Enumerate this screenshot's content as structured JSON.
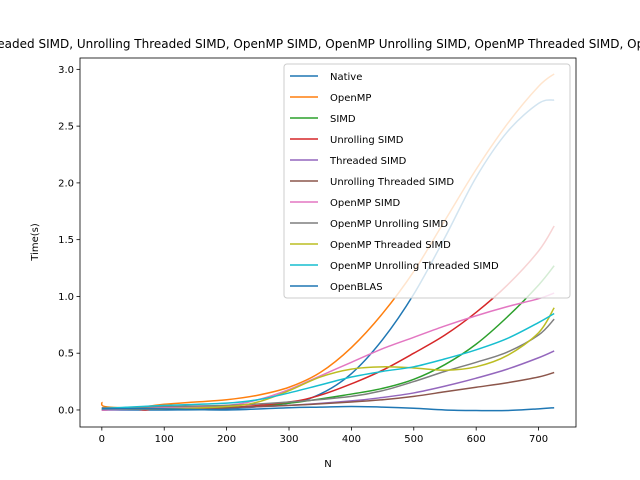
{
  "chart_data": {
    "type": "line",
    "title": "Native, OpenMP, SIMD, Unrolling SIMD, Threaded SIMD, Unrolling Threaded SIMD, OpenMP SIMD, OpenMP Unrolling SIMD, OpenMP Threaded SIMD, OpenMP Unrolling Threaded SIMD, OpenBLAS",
    "xlabel": "N",
    "ylabel": "Time(s)",
    "xlim": [
      -35,
      760
    ],
    "ylim": [
      -0.15,
      3.1
    ],
    "xticks": [
      0,
      100,
      200,
      300,
      400,
      500,
      600,
      700
    ],
    "yticks": [
      0.0,
      0.5,
      1.0,
      1.5,
      2.0,
      2.5,
      3.0
    ],
    "xtick_labels": [
      "0",
      "100",
      "200",
      "300",
      "400",
      "500",
      "600",
      "700"
    ],
    "ytick_labels": [
      "0.0",
      "0.5",
      "1.0",
      "1.5",
      "2.0",
      "2.5",
      "3.0"
    ],
    "legend_position": "top-right",
    "series": [
      {
        "name": "Native",
        "color": "#1f77b4",
        "points": [
          [
            0,
            0.0
          ],
          [
            100,
            0.0
          ],
          [
            200,
            0.01
          ],
          [
            300,
            0.06
          ],
          [
            350,
            0.14
          ],
          [
            400,
            0.32
          ],
          [
            450,
            0.62
          ],
          [
            500,
            1.02
          ],
          [
            550,
            1.52
          ],
          [
            600,
            2.05
          ],
          [
            650,
            2.45
          ],
          [
            700,
            2.7
          ],
          [
            725,
            2.73
          ]
        ]
      },
      {
        "name": "OpenMP",
        "color": "#ff7f0e",
        "points": [
          [
            0,
            0.07
          ],
          [
            5,
            0.03
          ],
          [
            50,
            0.02
          ],
          [
            100,
            0.05
          ],
          [
            150,
            0.07
          ],
          [
            200,
            0.09
          ],
          [
            250,
            0.13
          ],
          [
            300,
            0.2
          ],
          [
            350,
            0.33
          ],
          [
            400,
            0.55
          ],
          [
            450,
            0.85
          ],
          [
            500,
            1.22
          ],
          [
            550,
            1.67
          ],
          [
            600,
            2.12
          ],
          [
            650,
            2.52
          ],
          [
            700,
            2.85
          ],
          [
            725,
            2.96
          ]
        ]
      },
      {
        "name": "SIMD",
        "color": "#2ca02c",
        "points": [
          [
            0,
            0.02
          ],
          [
            30,
            0.02
          ],
          [
            100,
            0.01
          ],
          [
            200,
            0.02
          ],
          [
            300,
            0.06
          ],
          [
            400,
            0.14
          ],
          [
            450,
            0.19
          ],
          [
            500,
            0.27
          ],
          [
            550,
            0.4
          ],
          [
            600,
            0.58
          ],
          [
            650,
            0.82
          ],
          [
            700,
            1.1
          ],
          [
            725,
            1.27
          ]
        ]
      },
      {
        "name": "Unrolling SIMD",
        "color": "#d62728",
        "points": [
          [
            0,
            0.0
          ],
          [
            50,
            0.01
          ],
          [
            70,
            0.0
          ],
          [
            100,
            0.02
          ],
          [
            200,
            0.02
          ],
          [
            300,
            0.07
          ],
          [
            350,
            0.13
          ],
          [
            400,
            0.23
          ],
          [
            450,
            0.35
          ],
          [
            500,
            0.5
          ],
          [
            550,
            0.66
          ],
          [
            600,
            0.86
          ],
          [
            650,
            1.1
          ],
          [
            700,
            1.4
          ],
          [
            725,
            1.62
          ]
        ]
      },
      {
        "name": "Threaded SIMD",
        "color": "#9467bd",
        "points": [
          [
            0,
            0.0
          ],
          [
            100,
            0.01
          ],
          [
            200,
            0.02
          ],
          [
            300,
            0.04
          ],
          [
            400,
            0.08
          ],
          [
            450,
            0.11
          ],
          [
            500,
            0.15
          ],
          [
            550,
            0.21
          ],
          [
            600,
            0.28
          ],
          [
            650,
            0.36
          ],
          [
            700,
            0.46
          ],
          [
            725,
            0.52
          ]
        ]
      },
      {
        "name": "Unrolling Threaded SIMD",
        "color": "#8c564b",
        "points": [
          [
            0,
            0.01
          ],
          [
            100,
            0.01
          ],
          [
            200,
            0.02
          ],
          [
            300,
            0.04
          ],
          [
            400,
            0.07
          ],
          [
            450,
            0.09
          ],
          [
            500,
            0.12
          ],
          [
            550,
            0.16
          ],
          [
            600,
            0.2
          ],
          [
            650,
            0.24
          ],
          [
            700,
            0.29
          ],
          [
            725,
            0.33
          ]
        ]
      },
      {
        "name": "OpenMP SIMD",
        "color": "#e377c2",
        "points": [
          [
            0,
            0.0
          ],
          [
            100,
            0.02
          ],
          [
            200,
            0.04
          ],
          [
            250,
            0.09
          ],
          [
            300,
            0.18
          ],
          [
            350,
            0.3
          ],
          [
            400,
            0.42
          ],
          [
            450,
            0.54
          ],
          [
            500,
            0.64
          ],
          [
            550,
            0.74
          ],
          [
            600,
            0.83
          ],
          [
            650,
            0.91
          ],
          [
            700,
            0.98
          ],
          [
            725,
            1.03
          ]
        ]
      },
      {
        "name": "OpenMP Unrolling SIMD",
        "color": "#7f7f7f",
        "points": [
          [
            0,
            0.02
          ],
          [
            50,
            0.02
          ],
          [
            100,
            0.03
          ],
          [
            200,
            0.04
          ],
          [
            300,
            0.07
          ],
          [
            400,
            0.12
          ],
          [
            450,
            0.17
          ],
          [
            500,
            0.25
          ],
          [
            550,
            0.34
          ],
          [
            600,
            0.42
          ],
          [
            650,
            0.51
          ],
          [
            700,
            0.66
          ],
          [
            725,
            0.8
          ]
        ]
      },
      {
        "name": "OpenMP Threaded SIMD",
        "color": "#bcbd22",
        "points": [
          [
            0,
            0.01
          ],
          [
            100,
            0.01
          ],
          [
            200,
            0.03
          ],
          [
            250,
            0.07
          ],
          [
            300,
            0.17
          ],
          [
            350,
            0.29
          ],
          [
            400,
            0.36
          ],
          [
            450,
            0.38
          ],
          [
            500,
            0.37
          ],
          [
            550,
            0.35
          ],
          [
            600,
            0.38
          ],
          [
            650,
            0.48
          ],
          [
            700,
            0.68
          ],
          [
            725,
            0.9
          ]
        ]
      },
      {
        "name": "OpenMP Unrolling Threaded SIMD",
        "color": "#17becf",
        "points": [
          [
            0,
            0.01
          ],
          [
            25,
            0.02
          ],
          [
            100,
            0.04
          ],
          [
            200,
            0.06
          ],
          [
            250,
            0.09
          ],
          [
            300,
            0.15
          ],
          [
            350,
            0.22
          ],
          [
            400,
            0.29
          ],
          [
            450,
            0.34
          ],
          [
            500,
            0.38
          ],
          [
            550,
            0.45
          ],
          [
            600,
            0.53
          ],
          [
            650,
            0.63
          ],
          [
            700,
            0.77
          ],
          [
            725,
            0.85
          ]
        ]
      },
      {
        "name": "OpenBLAS",
        "color": "#1f77b4",
        "points": [
          [
            0,
            0.01
          ],
          [
            100,
            0.01
          ],
          [
            200,
            0.0
          ],
          [
            300,
            0.02
          ],
          [
            350,
            0.025
          ],
          [
            400,
            0.03
          ],
          [
            450,
            0.025
          ],
          [
            500,
            0.015
          ],
          [
            550,
            0.0
          ],
          [
            600,
            -0.005
          ],
          [
            650,
            -0.005
          ],
          [
            700,
            0.01
          ],
          [
            725,
            0.02
          ]
        ]
      }
    ]
  }
}
